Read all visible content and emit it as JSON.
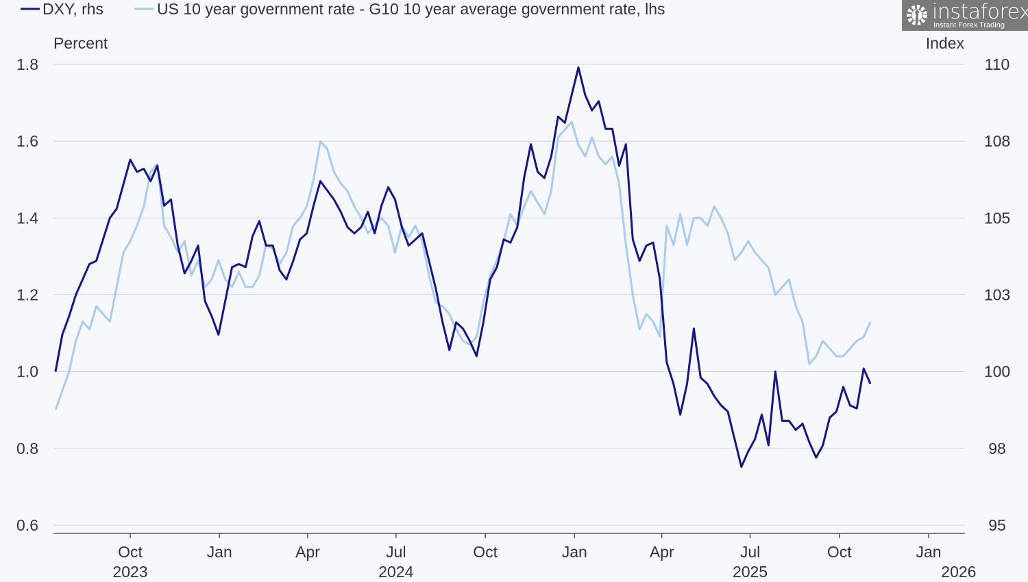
{
  "chart_data": {
    "type": "line",
    "title": "",
    "legend": {
      "placement": "top-left"
    },
    "left_axis": {
      "label": "Percent",
      "ylim": [
        0.6,
        1.8
      ],
      "ticks": [
        "0.6",
        "0.8",
        "1.0",
        "1.2",
        "1.4",
        "1.6",
        "1.8"
      ],
      "tick_values": [
        0.6,
        0.8,
        1.0,
        1.2,
        1.4,
        1.6,
        1.8
      ]
    },
    "right_axis": {
      "label": "Index",
      "ylim": [
        95,
        110
      ],
      "ticks": [
        "95",
        "98",
        "100",
        "103",
        "105",
        "108",
        "110"
      ],
      "tick_values": [
        95,
        97.5,
        100,
        102.5,
        105,
        107.5,
        110
      ]
    },
    "x_axis": {
      "range": [
        "2023-07-16",
        "2026-01-01"
      ],
      "month_ticks": [
        {
          "date": "2023-10-01",
          "label": "Oct"
        },
        {
          "date": "2024-01-01",
          "label": "Jan"
        },
        {
          "date": "2024-04-01",
          "label": "Apr"
        },
        {
          "date": "2024-07-01",
          "label": "Jul"
        },
        {
          "date": "2024-10-01",
          "label": "Oct"
        },
        {
          "date": "2025-01-01",
          "label": "Jan"
        },
        {
          "date": "2025-04-01",
          "label": "Apr"
        },
        {
          "date": "2025-07-01",
          "label": "Jul"
        },
        {
          "date": "2025-10-01",
          "label": "Oct"
        },
        {
          "date": "2026-01-01",
          "label": "Jan"
        }
      ],
      "year_labels": [
        {
          "date": "2023-10-01",
          "label": "2023"
        },
        {
          "date": "2024-07-01",
          "label": "2024"
        },
        {
          "date": "2025-07-01",
          "label": "2025"
        },
        {
          "date": "2026-02-01",
          "label": "2026"
        }
      ]
    },
    "grid": true,
    "series": [
      {
        "name": "DXY, rhs",
        "axis": "right",
        "color": "#16168a",
        "start": "2023-07-16",
        "step_days": 7,
        "values": [
          100.0,
          101.2,
          101.8,
          102.5,
          103.0,
          103.5,
          103.6,
          104.3,
          105.0,
          105.3,
          106.1,
          106.9,
          106.5,
          106.6,
          106.2,
          106.7,
          105.4,
          105.6,
          104.1,
          103.2,
          103.6,
          104.1,
          102.3,
          101.8,
          101.2,
          102.3,
          103.4,
          103.5,
          103.4,
          104.4,
          104.9,
          104.1,
          104.1,
          103.3,
          103.0,
          103.6,
          104.3,
          104.5,
          105.4,
          106.2,
          105.9,
          105.6,
          105.2,
          104.7,
          104.5,
          104.7,
          105.2,
          104.5,
          105.4,
          106.0,
          105.6,
          104.7,
          104.1,
          104.3,
          104.5,
          103.6,
          102.7,
          101.6,
          100.7,
          101.6,
          101.4,
          101.0,
          100.5,
          101.6,
          103.0,
          103.4,
          104.3,
          104.2,
          104.7,
          106.3,
          107.4,
          106.5,
          106.3,
          107.0,
          108.3,
          108.1,
          109.0,
          109.9,
          109.0,
          108.5,
          108.8,
          107.9,
          107.9,
          106.7,
          107.4,
          104.3,
          103.6,
          104.1,
          104.2,
          103.0,
          100.3,
          99.6,
          98.6,
          99.6,
          101.4,
          99.8,
          99.6,
          99.2,
          98.9,
          98.7,
          97.8,
          96.9,
          97.4,
          97.8,
          98.6,
          97.6,
          100.0,
          98.4,
          98.4,
          98.1,
          98.3,
          97.7,
          97.2,
          97.6,
          98.5,
          98.7,
          99.5,
          98.9,
          98.8,
          100.1,
          99.6
        ]
      },
      {
        "name": "US 10 year government rate - G10 10 year average government rate, lhs",
        "axis": "left",
        "color": "#a8cdf2",
        "start": "2023-07-16",
        "step_days": 7,
        "values": [
          0.9,
          0.95,
          1.0,
          1.08,
          1.13,
          1.11,
          1.17,
          1.15,
          1.13,
          1.22,
          1.31,
          1.34,
          1.38,
          1.43,
          1.52,
          1.54,
          1.38,
          1.35,
          1.31,
          1.34,
          1.25,
          1.29,
          1.22,
          1.24,
          1.29,
          1.24,
          1.22,
          1.26,
          1.22,
          1.22,
          1.25,
          1.33,
          1.32,
          1.28,
          1.31,
          1.38,
          1.4,
          1.43,
          1.5,
          1.6,
          1.58,
          1.52,
          1.49,
          1.47,
          1.43,
          1.4,
          1.36,
          1.38,
          1.4,
          1.38,
          1.31,
          1.38,
          1.35,
          1.38,
          1.34,
          1.25,
          1.18,
          1.17,
          1.15,
          1.11,
          1.08,
          1.07,
          1.09,
          1.18,
          1.25,
          1.29,
          1.34,
          1.41,
          1.38,
          1.43,
          1.47,
          1.44,
          1.41,
          1.47,
          1.61,
          1.63,
          1.65,
          1.59,
          1.56,
          1.61,
          1.56,
          1.54,
          1.56,
          1.49,
          1.33,
          1.2,
          1.11,
          1.15,
          1.13,
          1.09,
          1.38,
          1.33,
          1.41,
          1.33,
          1.4,
          1.4,
          1.38,
          1.43,
          1.4,
          1.36,
          1.29,
          1.31,
          1.34,
          1.31,
          1.29,
          1.27,
          1.2,
          1.22,
          1.24,
          1.17,
          1.13,
          1.02,
          1.04,
          1.08,
          1.06,
          1.04,
          1.04,
          1.06,
          1.08,
          1.09,
          1.13
        ]
      }
    ]
  },
  "watermark": {
    "name": "instaforex",
    "tagline": "Instant Forex Trading"
  }
}
